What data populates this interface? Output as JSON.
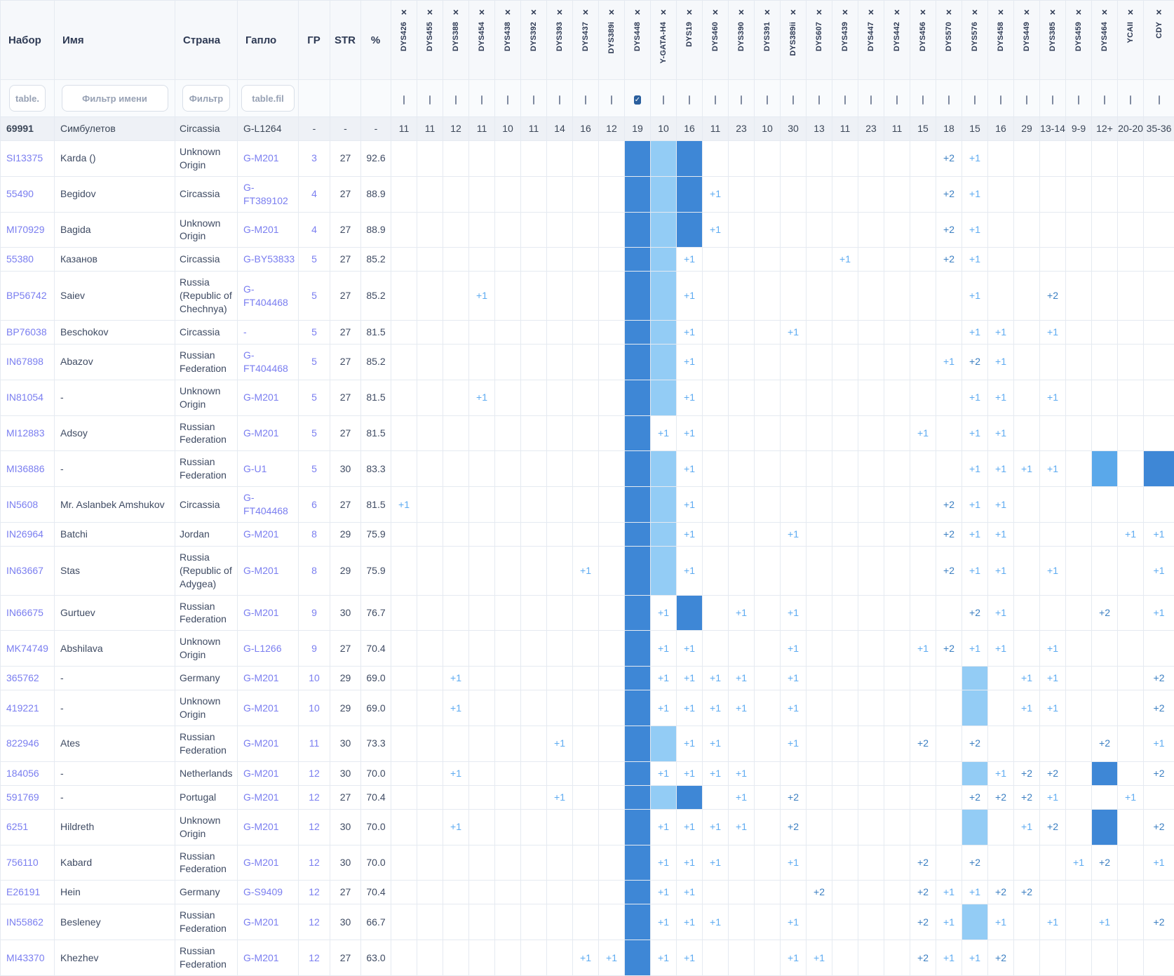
{
  "table": {
    "columns": {
      "kit": "Набор",
      "name": "Имя",
      "country": "Страна",
      "haplo": "Гапло",
      "gr": "ГР",
      "str": "STR",
      "pct": "%"
    },
    "remove_icon": "×",
    "check_icon": "✓",
    "filters": {
      "kit_placeholder": "table.",
      "name_placeholder": "Фильтр имени",
      "country_placeholder": "Фильтр",
      "haplo_placeholder": "table.fil"
    },
    "markers": [
      "DYS426",
      "DYS455",
      "DYS388",
      "DYS454",
      "DYS438",
      "DYS392",
      "DYS393",
      "DYS437",
      "DYS389i",
      "DYS448",
      "Y-GATA-H4",
      "DYS19",
      "DYS460",
      "DYS390",
      "DYS391",
      "DYS389ii",
      "DYS607",
      "DYS439",
      "DYS447",
      "DYS442",
      "DYS456",
      "DYS570",
      "DYS576",
      "DYS458",
      "DYS449",
      "DYS385",
      "DYS459",
      "DYS464",
      "YCAII",
      "CDY"
    ],
    "checked_marker": "DYS448",
    "base_row": {
      "kit": "69991",
      "name": "Симбулетов",
      "country": "Circassia",
      "haplo": "G-L1264",
      "gr": "-",
      "str": "-",
      "pct": "-",
      "values": [
        "11",
        "11",
        "12",
        "11",
        "10",
        "11",
        "14",
        "16",
        "12",
        "19",
        "10",
        "16",
        "11",
        "23",
        "10",
        "30",
        "13",
        "11",
        "23",
        "11",
        "15",
        "18",
        "15",
        "16",
        "29",
        "13-14",
        "9-9",
        "12+",
        "20-20",
        "35-36"
      ]
    },
    "rows": [
      {
        "kit": "SI13375",
        "name": "Karda ()",
        "country": "Unknown Origin",
        "haplo": "G-M201",
        "gr": "3",
        "str": "27",
        "pct": "92.6",
        "cells": {
          "DYS448": "#d",
          "Y-GATA-H4": "#l",
          "DYS19": "#d",
          "DYS570": "+2",
          "DYS576": "+1"
        }
      },
      {
        "kit": "55490",
        "name": "Begidov",
        "country": "Circassia",
        "haplo": "G-FT389102",
        "gr": "4",
        "str": "27",
        "pct": "88.9",
        "cells": {
          "DYS448": "#d",
          "Y-GATA-H4": "#l",
          "DYS19": "#d",
          "DYS460": "+1",
          "DYS570": "+2",
          "DYS576": "+1"
        }
      },
      {
        "kit": "MI70929",
        "name": "Bagida",
        "country": "Unknown Origin",
        "haplo": "G-M201",
        "gr": "4",
        "str": "27",
        "pct": "88.9",
        "cells": {
          "DYS448": "#d",
          "Y-GATA-H4": "#l",
          "DYS19": "#d",
          "DYS460": "+1",
          "DYS570": "+2",
          "DYS576": "+1"
        }
      },
      {
        "kit": "55380",
        "name": "Казанов",
        "country": "Circassia",
        "haplo": "G-BY53833",
        "gr": "5",
        "str": "27",
        "pct": "85.2",
        "cells": {
          "DYS448": "#d",
          "Y-GATA-H4": "#l",
          "DYS19": "+1",
          "DYS439": "+1",
          "DYS570": "+2",
          "DYS576": "+1"
        }
      },
      {
        "kit": "BP56742",
        "name": "Saiev",
        "country": "Russia (Republic of Chechnya)",
        "haplo": "G-FT404468",
        "gr": "5",
        "str": "27",
        "pct": "85.2",
        "cells": {
          "DYS454": "+1",
          "DYS448": "#d",
          "Y-GATA-H4": "#l",
          "DYS19": "+1",
          "DYS576": "+1",
          "DYS385": "+2"
        }
      },
      {
        "kit": "BP76038",
        "name": "Beschokov",
        "country": "Circassia",
        "haplo": "-",
        "gr": "5",
        "str": "27",
        "pct": "81.5",
        "cells": {
          "DYS448": "#d",
          "Y-GATA-H4": "#l",
          "DYS19": "+1",
          "DYS389ii": "+1",
          "DYS576": "+1",
          "DYS458": "+1",
          "DYS385": "+1"
        }
      },
      {
        "kit": "IN67898",
        "name": "Abazov",
        "country": "Russian Federation",
        "haplo": "G-FT404468",
        "gr": "5",
        "str": "27",
        "pct": "85.2",
        "cells": {
          "DYS448": "#d",
          "Y-GATA-H4": "#l",
          "DYS19": "+1",
          "DYS570": "+1",
          "DYS576": "+2",
          "DYS458": "+1"
        }
      },
      {
        "kit": "IN81054",
        "name": "-",
        "country": "Unknown Origin",
        "haplo": "G-M201",
        "gr": "5",
        "str": "27",
        "pct": "81.5",
        "cells": {
          "DYS454": "+1",
          "DYS448": "#d",
          "Y-GATA-H4": "#l",
          "DYS19": "+1",
          "DYS576": "+1",
          "DYS458": "+1",
          "DYS385": "+1"
        }
      },
      {
        "kit": "MI12883",
        "name": "Adsoy",
        "country": "Russian Federation",
        "haplo": "G-M201",
        "gr": "5",
        "str": "27",
        "pct": "81.5",
        "cells": {
          "DYS448": "#d",
          "Y-GATA-H4": "+1",
          "DYS19": "+1",
          "DYS456": "+1",
          "DYS576": "+1",
          "DYS458": "+1"
        }
      },
      {
        "kit": "MI36886",
        "name": "-",
        "country": "Russian Federation",
        "haplo": "G-U1",
        "gr": "5",
        "str": "30",
        "pct": "83.3",
        "cells": {
          "DYS448": "#d",
          "Y-GATA-H4": "#l",
          "DYS19": "+1",
          "DYS576": "+1",
          "DYS458": "+1",
          "DYS449": "+1",
          "DYS385": "+1",
          "DYS464": "#m",
          "CDY": "#d"
        }
      },
      {
        "kit": "IN5608",
        "name": "Mr. Aslanbek Amshukov",
        "country": "Circassia",
        "haplo": "G-FT404468",
        "gr": "6",
        "str": "27",
        "pct": "81.5",
        "cells": {
          "DYS426": "+1",
          "DYS448": "#d",
          "Y-GATA-H4": "#l",
          "DYS19": "+1",
          "DYS570": "+2",
          "DYS576": "+1",
          "DYS458": "+1"
        }
      },
      {
        "kit": "IN26964",
        "name": "Batchi",
        "country": "Jordan",
        "haplo": "G-M201",
        "gr": "8",
        "str": "29",
        "pct": "75.9",
        "cells": {
          "DYS448": "#d",
          "Y-GATA-H4": "#l",
          "DYS19": "+1",
          "DYS389ii": "+1",
          "DYS570": "+2",
          "DYS576": "+1",
          "DYS458": "+1",
          "YCAII": "+1",
          "CDY": "+1"
        }
      },
      {
        "kit": "IN63667",
        "name": "Stas",
        "country": "Russia (Republic of Adygea)",
        "haplo": "G-M201",
        "gr": "8",
        "str": "29",
        "pct": "75.9",
        "cells": {
          "DYS437": "+1",
          "DYS448": "#d",
          "Y-GATA-H4": "#l",
          "DYS19": "+1",
          "DYS570": "+2",
          "DYS576": "+1",
          "DYS458": "+1",
          "DYS385": "+1",
          "CDY": "+1"
        }
      },
      {
        "kit": "IN66675",
        "name": "Gurtuev",
        "country": "Russian Federation",
        "haplo": "G-M201",
        "gr": "9",
        "str": "30",
        "pct": "76.7",
        "cells": {
          "DYS448": "#d",
          "Y-GATA-H4": "+1",
          "DYS19": "#d",
          "DYS390": "+1",
          "DYS389ii": "+1",
          "DYS576": "+2",
          "DYS458": "+1",
          "DYS464": "+2",
          "CDY": "+1"
        }
      },
      {
        "kit": "MK74749",
        "name": "Abshilava",
        "country": "Unknown Origin",
        "haplo": "G-L1266",
        "gr": "9",
        "str": "27",
        "pct": "70.4",
        "cells": {
          "DYS448": "#d",
          "Y-GATA-H4": "+1",
          "DYS19": "+1",
          "DYS389ii": "+1",
          "DYS456": "+1",
          "DYS570": "+2",
          "DYS576": "+1",
          "DYS458": "+1",
          "DYS385": "+1"
        }
      },
      {
        "kit": "365762",
        "name": "-",
        "country": "Germany",
        "haplo": "G-M201",
        "gr": "10",
        "str": "29",
        "pct": "69.0",
        "cells": {
          "DYS388": "+1",
          "DYS448": "#d",
          "Y-GATA-H4": "+1",
          "DYS19": "+1",
          "DYS460": "+1",
          "DYS390": "+1",
          "DYS389ii": "+1",
          "DYS576": "#l",
          "DYS449": "+1",
          "DYS385": "+1",
          "CDY": "+2"
        }
      },
      {
        "kit": "419221",
        "name": "-",
        "country": "Unknown Origin",
        "haplo": "G-M201",
        "gr": "10",
        "str": "29",
        "pct": "69.0",
        "cells": {
          "DYS388": "+1",
          "DYS448": "#d",
          "Y-GATA-H4": "+1",
          "DYS19": "+1",
          "DYS460": "+1",
          "DYS390": "+1",
          "DYS389ii": "+1",
          "DYS576": "#l",
          "DYS449": "+1",
          "DYS385": "+1",
          "CDY": "+2"
        }
      },
      {
        "kit": "822946",
        "name": "Ates",
        "country": "Russian Federation",
        "haplo": "G-M201",
        "gr": "11",
        "str": "30",
        "pct": "73.3",
        "cells": {
          "DYS393": "+1",
          "DYS448": "#d",
          "Y-GATA-H4": "#l",
          "DYS19": "+1",
          "DYS460": "+1",
          "DYS389ii": "+1",
          "DYS456": "+2",
          "DYS576": "+2",
          "DYS464": "+2",
          "CDY": "+1"
        }
      },
      {
        "kit": "184056",
        "name": "-",
        "country": "Netherlands",
        "haplo": "G-M201",
        "gr": "12",
        "str": "30",
        "pct": "70.0",
        "cells": {
          "DYS388": "+1",
          "DYS448": "#d",
          "Y-GATA-H4": "+1",
          "DYS19": "+1",
          "DYS460": "+1",
          "DYS390": "+1",
          "DYS576": "#l",
          "DYS458": "+1",
          "DYS449": "+2",
          "DYS385": "+2",
          "DYS464": "#d",
          "CDY": "+2"
        }
      },
      {
        "kit": "591769",
        "name": "-",
        "country": "Portugal",
        "haplo": "G-M201",
        "gr": "12",
        "str": "27",
        "pct": "70.4",
        "cells": {
          "DYS393": "+1",
          "DYS448": "#d",
          "Y-GATA-H4": "#l",
          "DYS19": "#d",
          "DYS390": "+1",
          "DYS389ii": "+2",
          "DYS576": "+2",
          "DYS458": "+2",
          "DYS449": "+2",
          "DYS385": "+1",
          "YCAII": "+1"
        }
      },
      {
        "kit": "6251",
        "name": "Hildreth",
        "country": "Unknown Origin",
        "haplo": "G-M201",
        "gr": "12",
        "str": "30",
        "pct": "70.0",
        "cells": {
          "DYS388": "+1",
          "DYS448": "#d",
          "Y-GATA-H4": "+1",
          "DYS19": "+1",
          "DYS460": "+1",
          "DYS390": "+1",
          "DYS389ii": "+2",
          "DYS576": "#l",
          "DYS449": "+1",
          "DYS385": "+2",
          "DYS464": "#d",
          "CDY": "+2"
        }
      },
      {
        "kit": "756110",
        "name": "Kabard",
        "country": "Russian Federation",
        "haplo": "G-M201",
        "gr": "12",
        "str": "30",
        "pct": "70.0",
        "cells": {
          "DYS448": "#d",
          "Y-GATA-H4": "+1",
          "DYS19": "+1",
          "DYS460": "+1",
          "DYS389ii": "+1",
          "DYS456": "+2",
          "DYS576": "+2",
          "DYS459": "+1",
          "DYS464": "+2",
          "CDY": "+1"
        }
      },
      {
        "kit": "E26191",
        "name": "Hein",
        "country": "Germany",
        "haplo": "G-S9409",
        "gr": "12",
        "str": "27",
        "pct": "70.4",
        "cells": {
          "DYS448": "#d",
          "Y-GATA-H4": "+1",
          "DYS19": "+1",
          "DYS607": "+2",
          "DYS456": "+2",
          "DYS570": "+1",
          "DYS576": "+1",
          "DYS458": "+2",
          "DYS449": "+2"
        }
      },
      {
        "kit": "IN55862",
        "name": "Besleney",
        "country": "Russian Federation",
        "haplo": "G-M201",
        "gr": "12",
        "str": "30",
        "pct": "66.7",
        "cells": {
          "DYS448": "#d",
          "Y-GATA-H4": "+1",
          "DYS19": "+1",
          "DYS460": "+1",
          "DYS389ii": "+1",
          "DYS456": "+2",
          "DYS570": "+1",
          "DYS576": "#l",
          "DYS458": "+1",
          "DYS385": "+1",
          "DYS464": "+1",
          "CDY": "+2"
        }
      },
      {
        "kit": "MI43370",
        "name": "Khezhev",
        "country": "Russian Federation",
        "haplo": "G-M201",
        "gr": "12",
        "str": "27",
        "pct": "63.0",
        "cells": {
          "DYS437": "+1",
          "DYS389i": "+1",
          "DYS448": "#d",
          "Y-GATA-H4": "+1",
          "DYS19": "+1",
          "DYS389ii": "+1",
          "DYS607": "+1",
          "DYS456": "+2",
          "DYS570": "+1",
          "DYS576": "+1",
          "DYS458": "+2"
        }
      }
    ]
  },
  "colors": {
    "fill_dark": "#3e87d6",
    "fill_medium": "#5aa8ea",
    "fill_light": "#93ccf5",
    "plus1_text": "#5dabf1",
    "plus2_text": "#3b7fc2",
    "link": "#7a7ef0",
    "checkbox_checked": "#2a5f9e"
  }
}
